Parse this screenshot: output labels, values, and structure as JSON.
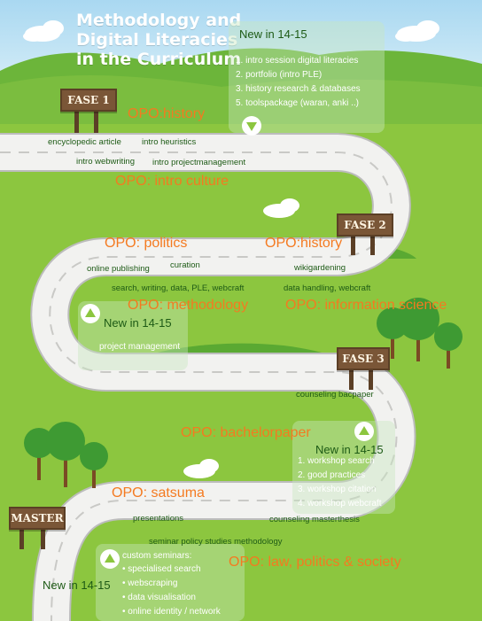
{
  "title": "Methodology and\nDigital Literacies\nin the Curriculum",
  "signs": {
    "fase1": "FASE 1",
    "fase2": "FASE 2",
    "fase3": "FASE 3",
    "master": "MASTER"
  },
  "opo": {
    "history1": "OPO:history",
    "intro_culture": "OPO: intro culture",
    "politics": "OPO: politics",
    "history2": "OPO:history",
    "methodology": "OPO: methodology",
    "information_science": "OPO: information science",
    "bachelorpaper": "OPO: bachelorpaper",
    "satsuma": "OPO: satsuma",
    "law": "OPO: law, politics & society"
  },
  "skills": {
    "encyclopedic_article": "encyclopedic article",
    "intro_heuristics": "intro heuristics",
    "intro_webwriting": "intro webwriting",
    "intro_projectmanagement": "intro projectmanagement",
    "online_publishing": "online publishing",
    "curation": "curation",
    "wikigardening": "wikigardening",
    "search_writing": "search, writing, data, PLE, webcraft",
    "data_handling": "data handling, webcraft",
    "project_management": "project management",
    "counseling_bacpaper": "counseling bacpaper",
    "presentations": "presentations",
    "counseling_masterthesis": "counseling masterthesis",
    "seminar_policy": "seminar policy studies methodology"
  },
  "panels": {
    "top": {
      "title": "New in 14-15",
      "items": [
        "1. intro session digital literacies",
        "2. portfolio (intro PLE)",
        "3. history research & databases",
        "5. toolspackage (waran, anki ..)"
      ]
    },
    "middle": {
      "title": "New in 14-15"
    },
    "right": {
      "title": "New in 14-15",
      "items": [
        "1. workshop search",
        "2. good practices",
        "3. workshop citation",
        "4. workshop webcraft"
      ]
    },
    "bottom": {
      "title": "New in 14-15",
      "header": "custom seminars:",
      "items": [
        "• specialised search",
        "• webscraping",
        "• data visualisation",
        "• online identity / network"
      ]
    }
  },
  "colors": {
    "sky": "#b4ddf3",
    "grass": "#8cc63f",
    "hills": "#5aa932",
    "road": "#f2f2f0",
    "opo_orange": "#f47a20",
    "skill_green": "#1e5b16",
    "sign_brown": "#7a5637"
  },
  "icons": [
    "cloud-icon",
    "tree-icon",
    "triangle-down-icon",
    "triangle-up-icon"
  ]
}
